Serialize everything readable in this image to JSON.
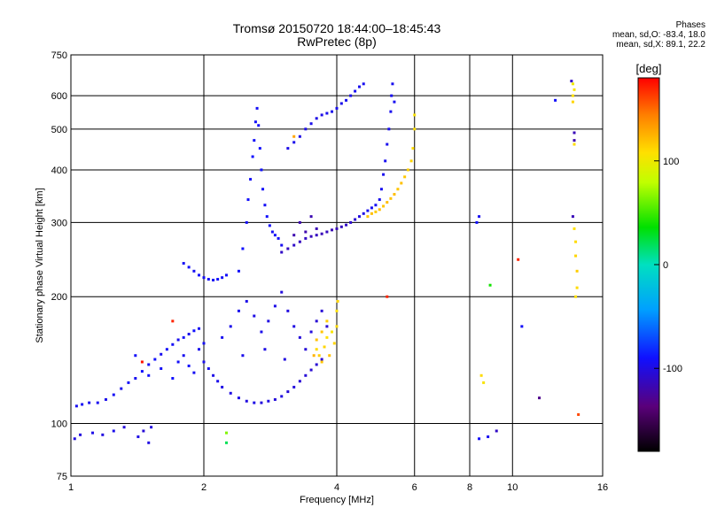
{
  "header": {
    "title_line1": "Tromsø 20150720 18:44:00–18:45:43",
    "title_line2": "RwPretec (8p)",
    "phase_title": "Phases",
    "phase_o": "mean, sd,O: -83.4, 18.0",
    "phase_x": "mean, sd,X:  89.1, 22.2"
  },
  "chart_data": {
    "type": "scatter",
    "title": "Tromsø 20150720 18:44:00–18:45:43",
    "subtitle": "RwPretec (8p)",
    "xlabel": "Frequency [MHz]",
    "ylabel": "Stationary phase Virtual Height [km]",
    "x_scale": "log",
    "y_scale": "log",
    "xlim": [
      1,
      16
    ],
    "ylim": [
      75,
      750
    ],
    "x_ticks": [
      1,
      2,
      4,
      6,
      8,
      10,
      16
    ],
    "x_tick_labels": [
      "1",
      "2",
      "4",
      "6",
      "8",
      "10",
      "16"
    ],
    "y_ticks": [
      75,
      100,
      200,
      300,
      400,
      500,
      600,
      750
    ],
    "y_tick_labels": [
      "75",
      "100",
      "200",
      "300",
      "400",
      "500",
      "600",
      "750"
    ],
    "grid": true,
    "colorbar": {
      "label": "[deg]",
      "range": [
        -180,
        180
      ],
      "ticks": [
        100,
        0,
        -100
      ],
      "tick_labels": [
        "100",
        "0",
        "-100"
      ],
      "colormap": "rainbow"
    },
    "series": [
      {
        "values": [
          [
            1.03,
            110,
            -95
          ],
          [
            1.06,
            111,
            -94
          ],
          [
            1.1,
            112,
            -96
          ],
          [
            1.15,
            112,
            -95
          ],
          [
            1.2,
            114,
            -97
          ],
          [
            1.25,
            117,
            -93
          ],
          [
            1.3,
            121,
            -96
          ],
          [
            1.35,
            125,
            -92
          ],
          [
            1.4,
            128,
            -95
          ],
          [
            1.45,
            133,
            -90
          ],
          [
            1.5,
            138,
            -94
          ],
          [
            1.55,
            142,
            -91
          ],
          [
            1.6,
            146,
            -95
          ],
          [
            1.65,
            150,
            -92
          ],
          [
            1.7,
            154,
            -93
          ],
          [
            1.75,
            158,
            -96
          ],
          [
            1.8,
            160,
            -92
          ],
          [
            1.85,
            163,
            -97
          ],
          [
            1.9,
            166,
            -90
          ],
          [
            1.95,
            168,
            -94
          ],
          [
            1.02,
            92,
            -100
          ],
          [
            1.05,
            94,
            -102
          ],
          [
            1.12,
            95,
            -98
          ],
          [
            1.18,
            94,
            -101
          ],
          [
            1.25,
            96,
            -97
          ],
          [
            1.32,
            98,
            -103
          ],
          [
            1.42,
            93,
            -99
          ],
          [
            1.46,
            96,
            -104
          ],
          [
            1.5,
            90,
            -100
          ],
          [
            1.52,
            98,
            -102
          ],
          [
            1.4,
            145,
            -92
          ],
          [
            1.5,
            130,
            -91
          ],
          [
            1.6,
            135,
            -93
          ],
          [
            1.7,
            128,
            -90
          ],
          [
            1.75,
            140,
            -92
          ],
          [
            1.8,
            145,
            -95
          ],
          [
            1.85,
            137,
            -91
          ],
          [
            1.9,
            132,
            -94
          ],
          [
            1.95,
            150,
            -96
          ],
          [
            2.0,
            155,
            -94
          ]
        ]
      },
      {
        "values": [
          [
            2.0,
            140,
            -96
          ],
          [
            2.05,
            135,
            -95
          ],
          [
            2.1,
            130,
            -98
          ],
          [
            2.15,
            126,
            -97
          ],
          [
            2.2,
            122,
            -99
          ],
          [
            2.3,
            118,
            -100
          ],
          [
            2.4,
            115,
            -98
          ],
          [
            2.5,
            113,
            -101
          ],
          [
            2.6,
            112,
            -99
          ],
          [
            2.7,
            112,
            -102
          ],
          [
            2.8,
            113,
            -100
          ],
          [
            2.9,
            114,
            -103
          ],
          [
            3.0,
            116,
            -101
          ],
          [
            3.1,
            119,
            -104
          ],
          [
            3.2,
            122,
            -102
          ],
          [
            3.3,
            126,
            -105
          ],
          [
            3.4,
            130,
            -104
          ],
          [
            3.5,
            134,
            -106
          ],
          [
            3.6,
            138,
            -105
          ],
          [
            3.7,
            142,
            -107
          ],
          [
            2.2,
            160,
            -95
          ],
          [
            2.3,
            170,
            -97
          ],
          [
            2.4,
            185,
            -96
          ],
          [
            2.5,
            195,
            -98
          ],
          [
            2.6,
            180,
            -99
          ],
          [
            2.7,
            165,
            -97
          ],
          [
            2.8,
            175,
            -100
          ],
          [
            2.9,
            190,
            -98
          ],
          [
            3.0,
            205,
            -102
          ],
          [
            3.1,
            185,
            -101
          ],
          [
            3.2,
            170,
            -100
          ],
          [
            3.3,
            160,
            -103
          ],
          [
            3.4,
            150,
            -104
          ],
          [
            3.5,
            165,
            -102
          ],
          [
            3.6,
            175,
            -105
          ],
          [
            3.7,
            185,
            -104
          ],
          [
            3.8,
            170,
            -106
          ],
          [
            2.45,
            145,
            -97
          ],
          [
            2.75,
            150,
            -99
          ],
          [
            3.05,
            142,
            -101
          ]
        ]
      },
      {
        "values": [
          [
            2.4,
            230,
            -92
          ],
          [
            2.45,
            260,
            -90
          ],
          [
            2.5,
            300,
            -92
          ],
          [
            2.52,
            340,
            -91
          ],
          [
            2.55,
            380,
            -93
          ],
          [
            2.58,
            430,
            -90
          ],
          [
            2.6,
            470,
            -92
          ],
          [
            2.62,
            520,
            -91
          ],
          [
            2.64,
            560,
            -93
          ],
          [
            2.66,
            510,
            -92
          ],
          [
            2.68,
            450,
            -91
          ],
          [
            2.7,
            400,
            -90
          ],
          [
            2.72,
            360,
            -92
          ],
          [
            2.75,
            330,
            -93
          ],
          [
            2.78,
            310,
            -91
          ],
          [
            2.82,
            295,
            -92
          ],
          [
            2.86,
            285,
            -94
          ],
          [
            2.9,
            280,
            -92
          ],
          [
            2.95,
            275,
            -93
          ],
          [
            3.0,
            265,
            -95
          ],
          [
            1.8,
            240,
            -93
          ],
          [
            1.85,
            235,
            -92
          ],
          [
            1.9,
            230,
            -94
          ],
          [
            1.95,
            225,
            -91
          ],
          [
            2.0,
            222,
            -93
          ],
          [
            2.05,
            220,
            -92
          ],
          [
            2.1,
            219,
            -94
          ],
          [
            2.15,
            220,
            -91
          ],
          [
            2.2,
            222,
            -93
          ],
          [
            2.25,
            225,
            -92
          ]
        ]
      },
      {
        "values": [
          [
            3.0,
            255,
            -110
          ],
          [
            3.1,
            260,
            -112
          ],
          [
            3.2,
            265,
            -109
          ],
          [
            3.3,
            270,
            -113
          ],
          [
            3.4,
            275,
            -111
          ],
          [
            3.5,
            278,
            -114
          ],
          [
            3.6,
            280,
            -112
          ],
          [
            3.7,
            282,
            -115
          ],
          [
            3.8,
            285,
            -113
          ],
          [
            3.9,
            288,
            -116
          ],
          [
            4.0,
            290,
            -114
          ],
          [
            4.1,
            293,
            -112
          ],
          [
            4.2,
            296,
            -110
          ],
          [
            4.3,
            300,
            -108
          ],
          [
            4.4,
            305,
            -105
          ],
          [
            4.5,
            310,
            -102
          ],
          [
            4.6,
            315,
            -99
          ],
          [
            4.7,
            320,
            -96
          ],
          [
            4.8,
            325,
            -95
          ],
          [
            4.9,
            330,
            -94
          ],
          [
            3.3,
            300,
            -118
          ],
          [
            3.5,
            310,
            -117
          ],
          [
            3.6,
            290,
            -116
          ],
          [
            3.4,
            285,
            -119
          ],
          [
            3.2,
            280,
            -118
          ]
        ]
      },
      {
        "values": [
          [
            3.1,
            450,
            -98
          ],
          [
            3.2,
            465,
            -97
          ],
          [
            3.3,
            480,
            -99
          ],
          [
            3.4,
            500,
            -98
          ],
          [
            3.5,
            515,
            -97
          ],
          [
            3.6,
            530,
            -99
          ],
          [
            3.7,
            540,
            -98
          ],
          [
            3.8,
            545,
            -96
          ],
          [
            3.9,
            550,
            -97
          ],
          [
            4.0,
            560,
            -96
          ],
          [
            4.1,
            575,
            -97
          ],
          [
            4.2,
            585,
            -95
          ],
          [
            4.3,
            600,
            -96
          ],
          [
            4.4,
            615,
            -95
          ],
          [
            4.5,
            630,
            -96
          ],
          [
            4.6,
            640,
            -95
          ],
          [
            5.0,
            340,
            -96
          ],
          [
            5.05,
            360,
            -95
          ],
          [
            5.1,
            390,
            -96
          ],
          [
            5.15,
            420,
            -95
          ],
          [
            5.2,
            460,
            -96
          ],
          [
            5.25,
            500,
            -95
          ],
          [
            5.3,
            550,
            -96
          ],
          [
            5.32,
            600,
            -95
          ],
          [
            5.35,
            640,
            -96
          ],
          [
            5.4,
            580,
            -95
          ]
        ]
      },
      {
        "values": [
          [
            3.6,
            150,
            110
          ],
          [
            3.65,
            145,
            115
          ],
          [
            3.7,
            140,
            118
          ],
          [
            3.75,
            152,
            112
          ],
          [
            3.8,
            160,
            108
          ],
          [
            3.85,
            145,
            120
          ],
          [
            3.9,
            165,
            105
          ],
          [
            3.95,
            155,
            112
          ],
          [
            4.0,
            170,
            110
          ],
          [
            4.0,
            185,
            108
          ],
          [
            4.02,
            195,
            112
          ],
          [
            3.8,
            175,
            115
          ],
          [
            3.7,
            165,
            118
          ],
          [
            3.6,
            158,
            120
          ],
          [
            3.55,
            145,
            125
          ],
          [
            4.7,
            310,
            118
          ],
          [
            4.8,
            315,
            120
          ],
          [
            4.9,
            318,
            116
          ],
          [
            5.0,
            322,
            121
          ],
          [
            5.1,
            328,
            118
          ],
          [
            5.2,
            335,
            122
          ],
          [
            5.3,
            342,
            119
          ],
          [
            5.4,
            350,
            121
          ],
          [
            5.5,
            360,
            118
          ],
          [
            5.6,
            372,
            120
          ],
          [
            5.7,
            385,
            117
          ],
          [
            5.8,
            400,
            115
          ],
          [
            5.9,
            420,
            112
          ],
          [
            5.95,
            450,
            110
          ],
          [
            6.0,
            500,
            108
          ],
          [
            6.0,
            540,
            106
          ]
        ]
      },
      {
        "values": [
          [
            8.3,
            300,
            -90
          ],
          [
            8.4,
            310,
            -95
          ],
          [
            8.5,
            130,
            110
          ],
          [
            8.6,
            125,
            105
          ],
          [
            8.4,
            92,
            -92
          ],
          [
            8.8,
            93,
            -95
          ],
          [
            9.2,
            96,
            -110
          ],
          [
            8.9,
            213,
            40
          ],
          [
            10.5,
            170,
            -92
          ],
          [
            11.5,
            115,
            -130
          ],
          [
            10.3,
            245,
            170
          ],
          [
            12.5,
            585,
            -92
          ],
          [
            13.6,
            650,
            -110
          ],
          [
            13.7,
            640,
            100
          ],
          [
            13.8,
            620,
            105
          ],
          [
            13.7,
            600,
            108
          ],
          [
            13.7,
            580,
            112
          ],
          [
            13.8,
            490,
            -115
          ],
          [
            13.8,
            470,
            -120
          ],
          [
            13.8,
            460,
            110
          ],
          [
            13.7,
            310,
            -115
          ],
          [
            13.8,
            290,
            108
          ],
          [
            13.9,
            270,
            110
          ],
          [
            13.9,
            250,
            112
          ],
          [
            14.0,
            230,
            115
          ],
          [
            14.0,
            210,
            110
          ],
          [
            13.9,
            200,
            108
          ],
          [
            14.1,
            105,
            160
          ],
          [
            5.2,
            200,
            170
          ],
          [
            3.2,
            480,
            130
          ],
          [
            1.45,
            140,
            175
          ],
          [
            1.7,
            175,
            170
          ],
          [
            2.25,
            95,
            65
          ],
          [
            2.25,
            90,
            20
          ]
        ]
      }
    ]
  }
}
